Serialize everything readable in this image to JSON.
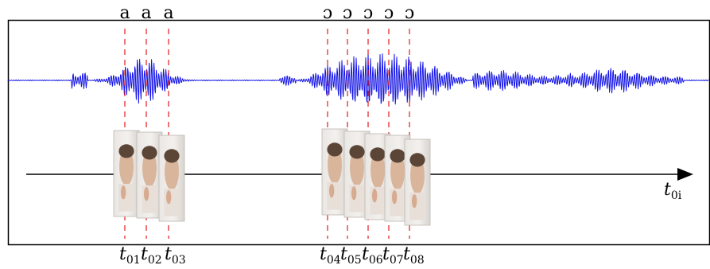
{
  "diagram": {
    "phonemes_a": [
      "a",
      "a",
      "a"
    ],
    "phonemes_o": [
      "ɔ",
      "ɔ",
      "ɔ",
      "ɔ",
      "ɔ"
    ],
    "markers": [
      {
        "base": "t",
        "sub": "01"
      },
      {
        "base": "t",
        "sub": "02"
      },
      {
        "base": "t",
        "sub": "03"
      },
      {
        "base": "t",
        "sub": "04"
      },
      {
        "base": "t",
        "sub": "05"
      },
      {
        "base": "t",
        "sub": "06"
      },
      {
        "base": "t",
        "sub": "07"
      },
      {
        "base": "t",
        "sub": "08"
      }
    ],
    "axis_label": {
      "base": "t",
      "sub": "0i"
    },
    "colors": {
      "waveform": "#1515e6",
      "marker_line": "#e21b1b",
      "frame": "#000000",
      "axis": "#000000"
    }
  }
}
